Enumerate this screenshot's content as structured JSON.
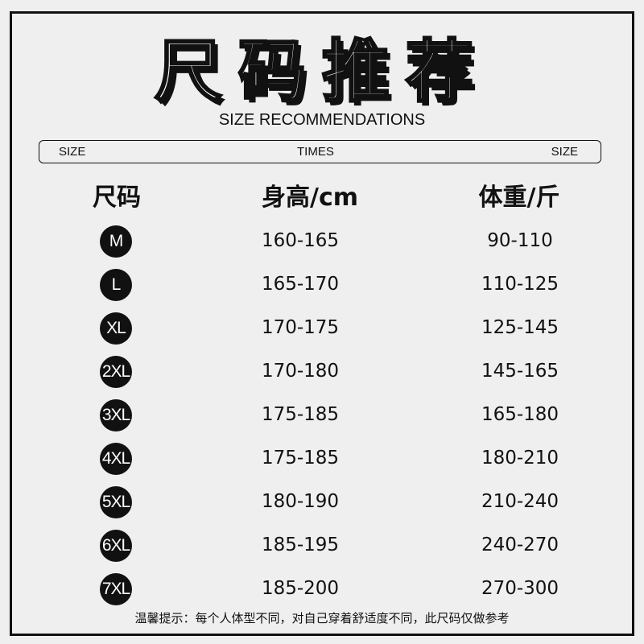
{
  "title": "尺码推荐",
  "subtitle": "SIZE RECOMMENDATIONS",
  "bar": {
    "left": "SIZE",
    "center": "TIMES",
    "right": "SIZE"
  },
  "headers": {
    "size": "尺码",
    "height": "身高/cm",
    "weight": "体重/斤"
  },
  "rows": [
    {
      "size": "M",
      "height": "160-165",
      "weight": "90-110"
    },
    {
      "size": "L",
      "height": "165-170",
      "weight": "110-125"
    },
    {
      "size": "XL",
      "height": "170-175",
      "weight": "125-145"
    },
    {
      "size": "2XL",
      "height": "170-180",
      "weight": "145-165"
    },
    {
      "size": "3XL",
      "height": "175-185",
      "weight": "165-180"
    },
    {
      "size": "4XL",
      "height": "175-185",
      "weight": "180-210"
    },
    {
      "size": "5XL",
      "height": "180-190",
      "weight": "210-240"
    },
    {
      "size": "6XL",
      "height": "185-195",
      "weight": "240-270"
    },
    {
      "size": "7XL",
      "height": "185-200",
      "weight": "270-300"
    }
  ],
  "note": "温馨提示：每个人体型不同，对自己穿着舒适度不同，此尺码仅做参考"
}
